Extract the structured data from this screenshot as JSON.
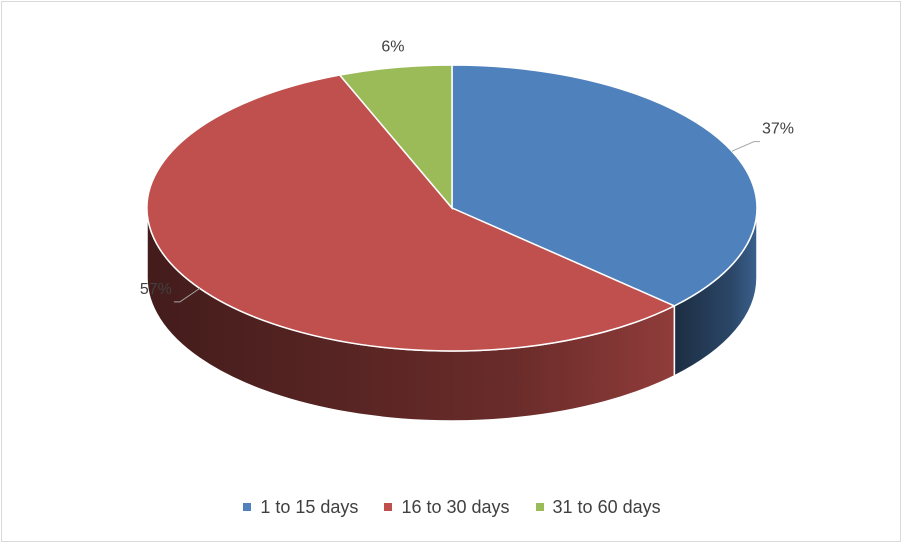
{
  "chart_data": {
    "type": "pie",
    "title": "",
    "categories": [
      "1 to 15 days",
      "16 to 30 days",
      "31 to 60 days"
    ],
    "values": [
      37,
      57,
      6
    ],
    "labels": [
      "37%",
      "57%",
      "6%"
    ],
    "colors": [
      "#4f81bd",
      "#c0504d",
      "#9bbb59"
    ],
    "legend_position": "bottom",
    "three_d": true
  }
}
